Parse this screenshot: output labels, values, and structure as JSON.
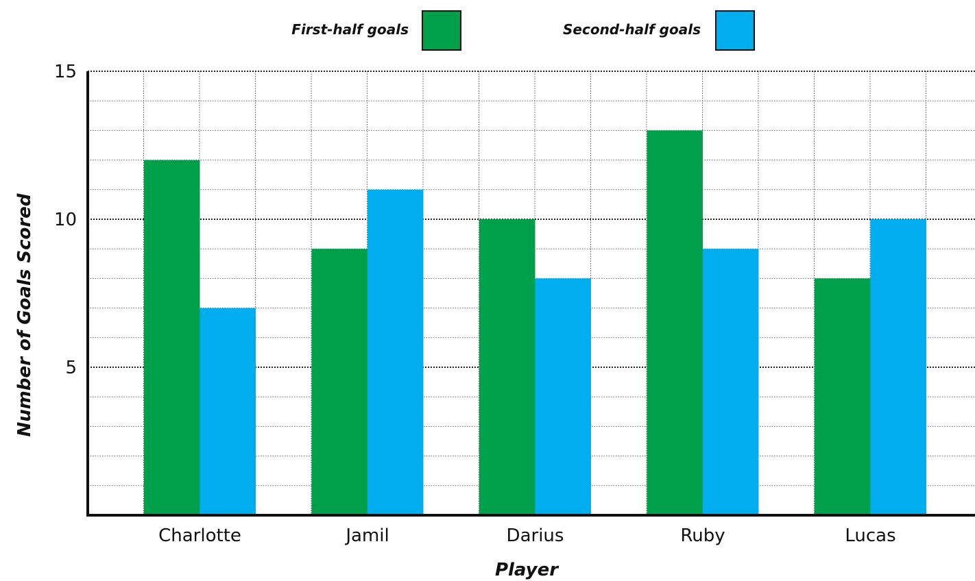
{
  "chart_data": {
    "type": "bar",
    "title": "",
    "xlabel": "Player",
    "ylabel": "Number of Goals Scored",
    "categories": [
      "Charlotte",
      "Jamil",
      "Darius",
      "Ruby",
      "Lucas"
    ],
    "series": [
      {
        "name": "First-half goals",
        "values": [
          12,
          9,
          10,
          13,
          8
        ],
        "color": "#00a04a"
      },
      {
        "name": "Second-half goals",
        "values": [
          7,
          11,
          8,
          9,
          10
        ],
        "color": "#00aeef"
      }
    ],
    "ylim": [
      0,
      15
    ],
    "yticks": [
      5,
      10,
      15
    ],
    "grid": true,
    "legend_position": "top"
  }
}
